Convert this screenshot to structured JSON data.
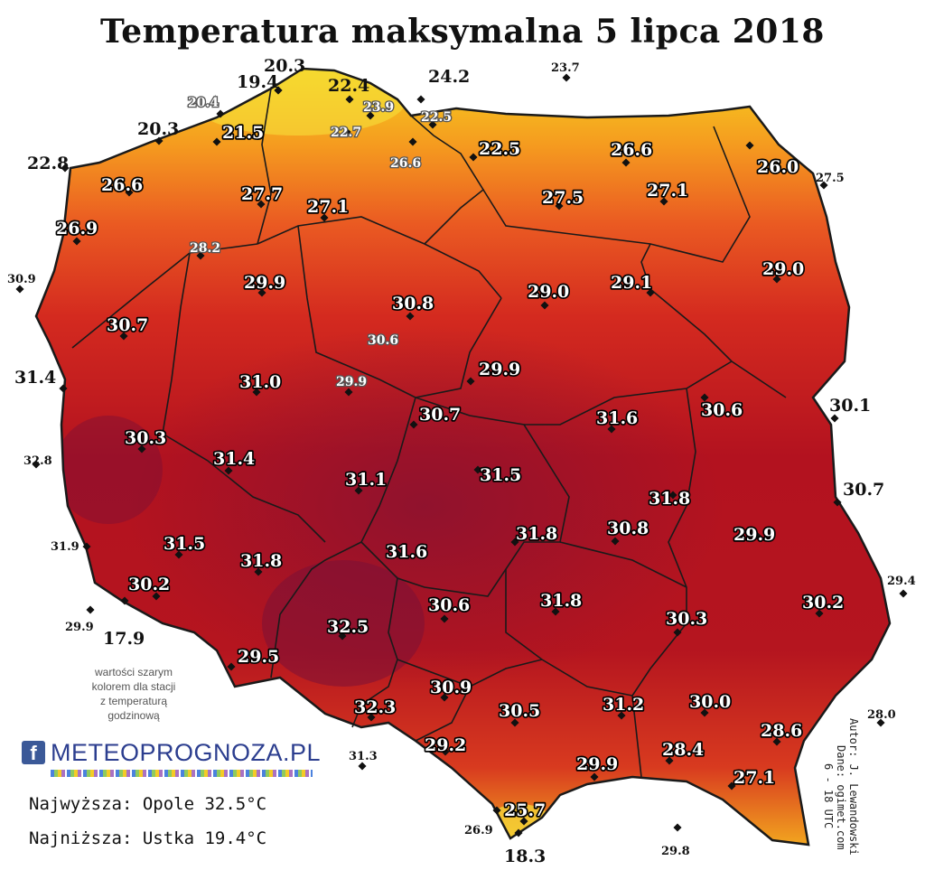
{
  "title": "Temperatura maksymalna 5 lipca 2018",
  "colors": {
    "hot": "#8e1328",
    "warm": "#c8151f",
    "mild": "#e84a1d",
    "coast": "#f59a1f",
    "cool": "#f6d21f",
    "border": "#1a1a1a"
  },
  "stations": [
    {
      "value": "20.3"
    },
    {
      "value": "19.4"
    },
    {
      "value": "22.4"
    },
    {
      "value": "24.2"
    },
    {
      "value": "23.7"
    },
    {
      "value": "20.4"
    },
    {
      "value": "23.9"
    },
    {
      "value": "20.3"
    },
    {
      "value": "21.5"
    },
    {
      "value": "22.7"
    },
    {
      "value": "22.5"
    },
    {
      "value": "22.8"
    },
    {
      "value": "26.6"
    },
    {
      "value": "22.5"
    },
    {
      "value": "26.6"
    },
    {
      "value": "26.6"
    },
    {
      "value": "26.0"
    },
    {
      "value": "27.5"
    },
    {
      "value": "27.7"
    },
    {
      "value": "27.1"
    },
    {
      "value": "27.5"
    },
    {
      "value": "27.1"
    },
    {
      "value": "26.9"
    },
    {
      "value": "28.2"
    },
    {
      "value": "30.9"
    },
    {
      "value": "29.9"
    },
    {
      "value": "29.0"
    },
    {
      "value": "29.1"
    },
    {
      "value": "29.0"
    },
    {
      "value": "30.8"
    },
    {
      "value": "30.7"
    },
    {
      "value": "30.6"
    },
    {
      "value": "31.4"
    },
    {
      "value": "31.0"
    },
    {
      "value": "29.9"
    },
    {
      "value": "29.9"
    },
    {
      "value": "30.7"
    },
    {
      "value": "31.6"
    },
    {
      "value": "30.6"
    },
    {
      "value": "30.1"
    },
    {
      "value": "30.3"
    },
    {
      "value": "32.8"
    },
    {
      "value": "31.4"
    },
    {
      "value": "31.5"
    },
    {
      "value": "31.1"
    },
    {
      "value": "31.8"
    },
    {
      "value": "30.7"
    },
    {
      "value": "31.8"
    },
    {
      "value": "29.9"
    },
    {
      "value": "31.9"
    },
    {
      "value": "31.5"
    },
    {
      "value": "31.6"
    },
    {
      "value": "30.8"
    },
    {
      "value": "31.8"
    },
    {
      "value": "29.4"
    },
    {
      "value": "30.2"
    },
    {
      "value": "30.6"
    },
    {
      "value": "31.8"
    },
    {
      "value": "30.2"
    },
    {
      "value": "29.9"
    },
    {
      "value": "17.9"
    },
    {
      "value": "32.5"
    },
    {
      "value": "30.3"
    },
    {
      "value": "29.5"
    },
    {
      "value": "30.9"
    },
    {
      "value": "32.3"
    },
    {
      "value": "30.5"
    },
    {
      "value": "31.2"
    },
    {
      "value": "30.0"
    },
    {
      "value": "28.0"
    },
    {
      "value": "28.6"
    },
    {
      "value": "29.2"
    },
    {
      "value": "31.3"
    },
    {
      "value": "28.4"
    },
    {
      "value": "29.9"
    },
    {
      "value": "27.1"
    },
    {
      "value": "25.7"
    },
    {
      "value": "26.9"
    },
    {
      "value": "18.3"
    },
    {
      "value": "29.8"
    }
  ],
  "note": [
    "wartości szarym",
    "kolorem dla stacji",
    "z temperaturą",
    "godzinową"
  ],
  "logo": {
    "facebook": "f",
    "brand": "METEOPROGNOZA.PL"
  },
  "stats": {
    "highest": "Najwyższa: Opole 32.5°C",
    "lowest": "Najniższa: Ustka 19.4°C"
  },
  "credits": {
    "author": "Autor: J. Lewandowski",
    "data": "Dane: ogimet.com",
    "hours": "6 - 18 UTC"
  }
}
